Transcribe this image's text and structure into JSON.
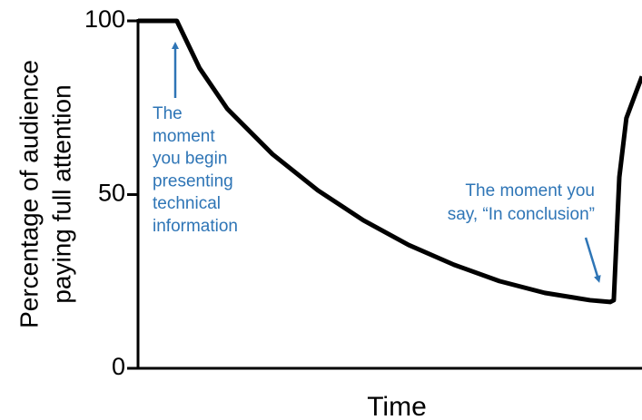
{
  "chart_data": {
    "type": "line",
    "xlabel": "Time",
    "ylabel": [
      "Percentage of audience",
      "paying full attention"
    ],
    "x": [
      0,
      7.7,
      12.2,
      17.7,
      26.7,
      35.7,
      44.7,
      53.7,
      62.7,
      71.7,
      80.7,
      89.7,
      93.7,
      94.4,
      95.5,
      96.9,
      98.7,
      100
    ],
    "series": [
      {
        "color": "#000000",
        "values": [
          100,
          100,
          86.4,
          74.7,
          61.6,
          51.2,
          42.6,
          35.5,
          29.8,
          25.1,
          21.7,
          19.6,
          19.1,
          19.6,
          55,
          72,
          79,
          84
        ]
      }
    ],
    "xlim": [
      0,
      100
    ],
    "ylim": [
      0,
      100
    ],
    "yticks": [
      0,
      50,
      100
    ],
    "annotations": [
      {
        "text": [
          "The",
          "moment",
          "you begin",
          "presenting",
          "technical",
          "information"
        ],
        "color": "#2e75b6"
      },
      {
        "text": [
          "The moment you",
          "say, “In conclusion”"
        ],
        "color": "#2e75b6"
      }
    ]
  }
}
